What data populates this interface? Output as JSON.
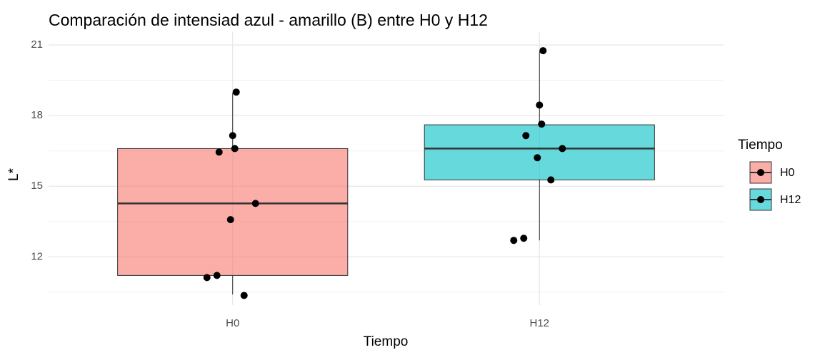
{
  "chart_data": {
    "type": "box",
    "title": "Comparación de intensiad azul - amarillo (B) entre H0 y H12",
    "x_label": "Tiempo",
    "y_label": "L*",
    "legend_title": "Tiempo",
    "categories": [
      "H0",
      "H12"
    ],
    "ylim": [
      9.95,
      21.55
    ],
    "yticks": [
      12,
      15,
      18,
      21
    ],
    "yminor": [
      10.5,
      13.5,
      16.5,
      19.5
    ],
    "grid": true,
    "legend": "right",
    "alpha": 0.6,
    "boxes": [
      {
        "name": "H0",
        "color": "#F8766D",
        "whislo": 10.4,
        "q1": 11.21,
        "med": 14.27,
        "q3": 16.6,
        "whishi": 18.97,
        "points": [
          11.12,
          11.21,
          10.36,
          13.58,
          14.27,
          16.45,
          16.6,
          17.15,
          19.0
        ]
      },
      {
        "name": "H12",
        "color": "#00BFC4",
        "whislo": 12.7,
        "q1": 15.27,
        "med": 16.6,
        "q3": 17.61,
        "whishi": 20.73,
        "points": [
          12.7,
          12.79,
          15.27,
          16.21,
          16.6,
          17.15,
          17.64,
          18.45,
          20.76
        ]
      }
    ]
  }
}
